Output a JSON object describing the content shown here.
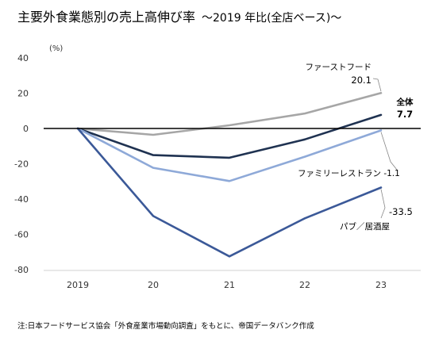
{
  "title": "主要外食業態別の売上高伸び率",
  "subtitle": "～2019 年比(全店ベース)～",
  "note": "注:日本フードサービス協会「外食産業市場動向調査」をもとに、帝国データバンク作成",
  "chart_data": {
    "type": "line",
    "title": "主要外食業態別の売上高伸び率",
    "ylabel": "(%)",
    "xlabel": "",
    "ylim": [
      -80,
      40
    ],
    "yticks": [
      40,
      20,
      0,
      -20,
      -40,
      -60,
      -80
    ],
    "categories": [
      "2019",
      "20",
      "21",
      "22",
      "23"
    ],
    "grid": false,
    "series": [
      {
        "name": "ファーストフード",
        "end_label": "20.1",
        "color": "#a6a6a6",
        "values": [
          0,
          -3.6,
          1.8,
          8.5,
          20.1
        ]
      },
      {
        "name": "全体",
        "end_label": "7.7",
        "color": "#1f3251",
        "values": [
          0,
          -15.1,
          -16.6,
          -6.2,
          7.7
        ]
      },
      {
        "name": "ファミリーレストラン",
        "end_label": "-1.1",
        "color": "#8ea9d8",
        "values": [
          0,
          -22.3,
          -29.8,
          -16.0,
          -1.1
        ]
      },
      {
        "name": "パブ／居酒屋",
        "end_label": "-33.5",
        "color": "#3b5998",
        "values": [
          0,
          -49.6,
          -72.5,
          -50.9,
          -33.5
        ]
      }
    ]
  }
}
